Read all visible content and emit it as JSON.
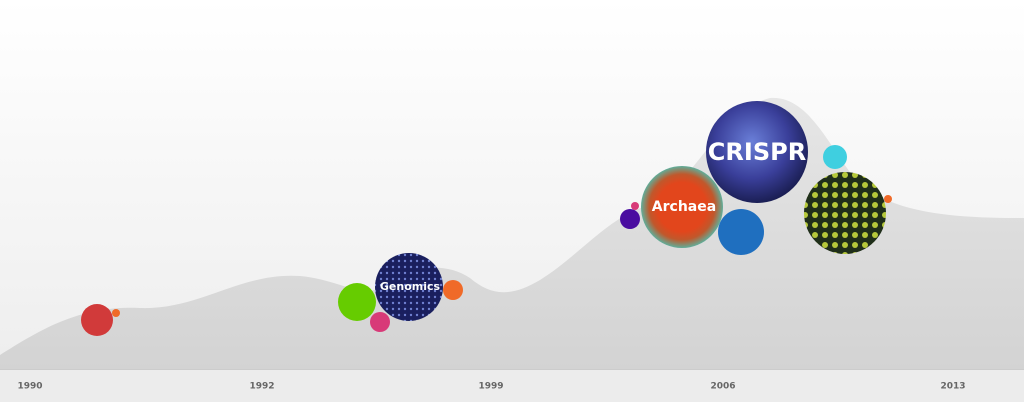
{
  "timeline": {
    "labels": [
      "1990",
      "1992",
      "1999",
      "2006",
      "2013"
    ]
  },
  "topics": [
    {
      "label": "Genomics"
    },
    {
      "label": "Archaea"
    },
    {
      "label": "CRISPR"
    }
  ]
}
